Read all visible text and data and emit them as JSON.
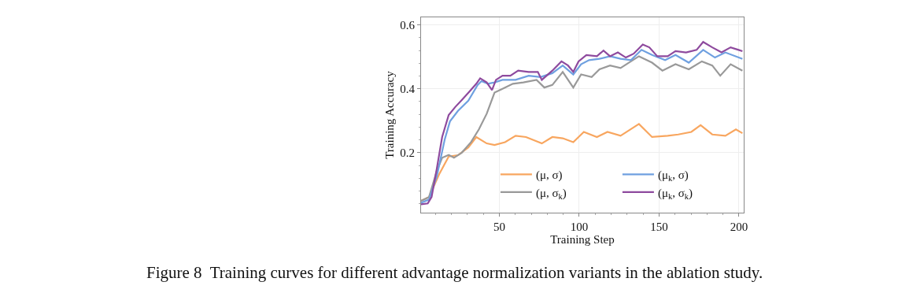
{
  "chart_data": {
    "type": "line",
    "xlabel": "Training Step",
    "ylabel": "Training Accuracy",
    "xlim": [
      1,
      203
    ],
    "ylim": [
      0.012,
      0.624
    ],
    "xticks": [
      50,
      100,
      150,
      200
    ],
    "yticks": [
      0.2,
      0.4,
      0.6
    ],
    "grid": true,
    "legend": "bottom right",
    "marker": "none",
    "line_style": "solid",
    "annotations": [
      "Figure 8  Training curves for different advantage normalization variants in the ablation study."
    ],
    "series": [
      {
        "name": "(μ, σ)",
        "color": "#f8a65f",
        "x": [
          1,
          6,
          12.6,
          18.3,
          24.1,
          30.6,
          35.6,
          42.1,
          47,
          53.6,
          60.2,
          66.7,
          76.6,
          83.2,
          89.7,
          96.3,
          102.9,
          111.1,
          117.7,
          125.9,
          137.4,
          145.6,
          155.4,
          162,
          170.2,
          176,
          183.3,
          191.5,
          198.1,
          202.2
        ],
        "values": [
          0.049,
          0.061,
          0.135,
          0.188,
          0.192,
          0.216,
          0.249,
          0.229,
          0.224,
          0.233,
          0.253,
          0.249,
          0.229,
          0.249,
          0.245,
          0.233,
          0.265,
          0.249,
          0.265,
          0.253,
          0.29,
          0.249,
          0.253,
          0.257,
          0.265,
          0.286,
          0.257,
          0.253,
          0.273,
          0.261
        ]
      },
      {
        "name": "(μ, σ$_{k}$)",
        "color": "#999999",
        "x": [
          1,
          6,
          10.9,
          14.2,
          18.3,
          21.6,
          26.5,
          32.3,
          37.2,
          42.1,
          47,
          52,
          58.5,
          65.1,
          73.3,
          78.2,
          83.2,
          89.7,
          96.3,
          101.2,
          107.8,
          112.7,
          119.3,
          125.9,
          132.4,
          137.4,
          145.6,
          152.1,
          160.3,
          168.6,
          176.8,
          183.3,
          188.3,
          194.8,
          202.2
        ],
        "values": [
          0.049,
          0.061,
          0.143,
          0.184,
          0.193,
          0.184,
          0.2,
          0.233,
          0.273,
          0.322,
          0.388,
          0.4,
          0.416,
          0.42,
          0.428,
          0.404,
          0.412,
          0.453,
          0.404,
          0.445,
          0.437,
          0.461,
          0.473,
          0.465,
          0.486,
          0.502,
          0.482,
          0.457,
          0.477,
          0.461,
          0.486,
          0.473,
          0.441,
          0.477,
          0.457
        ]
      },
      {
        "name": "(μ$_{k}$, σ)",
        "color": "#6fa0e0",
        "x": [
          1,
          6,
          10.9,
          15.8,
          19.1,
          24.1,
          30.6,
          36.4,
          38.8,
          42.9,
          47,
          52,
          60.2,
          68.4,
          75.8,
          83.2,
          89.7,
          96.3,
          101.2,
          106.2,
          112.7,
          119.3,
          125.9,
          132.4,
          139,
          145.6,
          153.8,
          160.3,
          168.6,
          177.6,
          185,
          191.5,
          202.2
        ],
        "values": [
          0.043,
          0.053,
          0.127,
          0.241,
          0.298,
          0.331,
          0.363,
          0.412,
          0.424,
          0.416,
          0.42,
          0.428,
          0.428,
          0.441,
          0.437,
          0.449,
          0.473,
          0.445,
          0.477,
          0.49,
          0.494,
          0.502,
          0.494,
          0.49,
          0.522,
          0.506,
          0.49,
          0.506,
          0.482,
          0.522,
          0.498,
          0.514,
          0.494
        ]
      },
      {
        "name": "(μ$_{k}$, σ$_{k}$)",
        "color": "#8e4a9e",
        "x": [
          1,
          5.2,
          7.6,
          10.9,
          14.2,
          18.3,
          22.4,
          26.5,
          31.4,
          35.6,
          38,
          42.1,
          45.4,
          47.9,
          52,
          56.9,
          61.8,
          68.4,
          74.1,
          76.6,
          83.2,
          88.9,
          93,
          96.3,
          99.6,
          104.5,
          111.1,
          115.2,
          119.3,
          124.2,
          129.2,
          134.1,
          139.8,
          143.9,
          148.9,
          155.4,
          160.3,
          166.9,
          173.5,
          177.6,
          183.3,
          189.1,
          194.8,
          199.8,
          202.2
        ],
        "values": [
          0.038,
          0.041,
          0.061,
          0.151,
          0.249,
          0.318,
          0.343,
          0.365,
          0.392,
          0.416,
          0.433,
          0.42,
          0.396,
          0.428,
          0.441,
          0.441,
          0.457,
          0.453,
          0.453,
          0.428,
          0.457,
          0.486,
          0.473,
          0.453,
          0.486,
          0.506,
          0.502,
          0.52,
          0.502,
          0.514,
          0.498,
          0.51,
          0.539,
          0.53,
          0.502,
          0.502,
          0.518,
          0.514,
          0.522,
          0.547,
          0.53,
          0.514,
          0.53,
          0.522,
          0.518
        ]
      }
    ]
  }
}
